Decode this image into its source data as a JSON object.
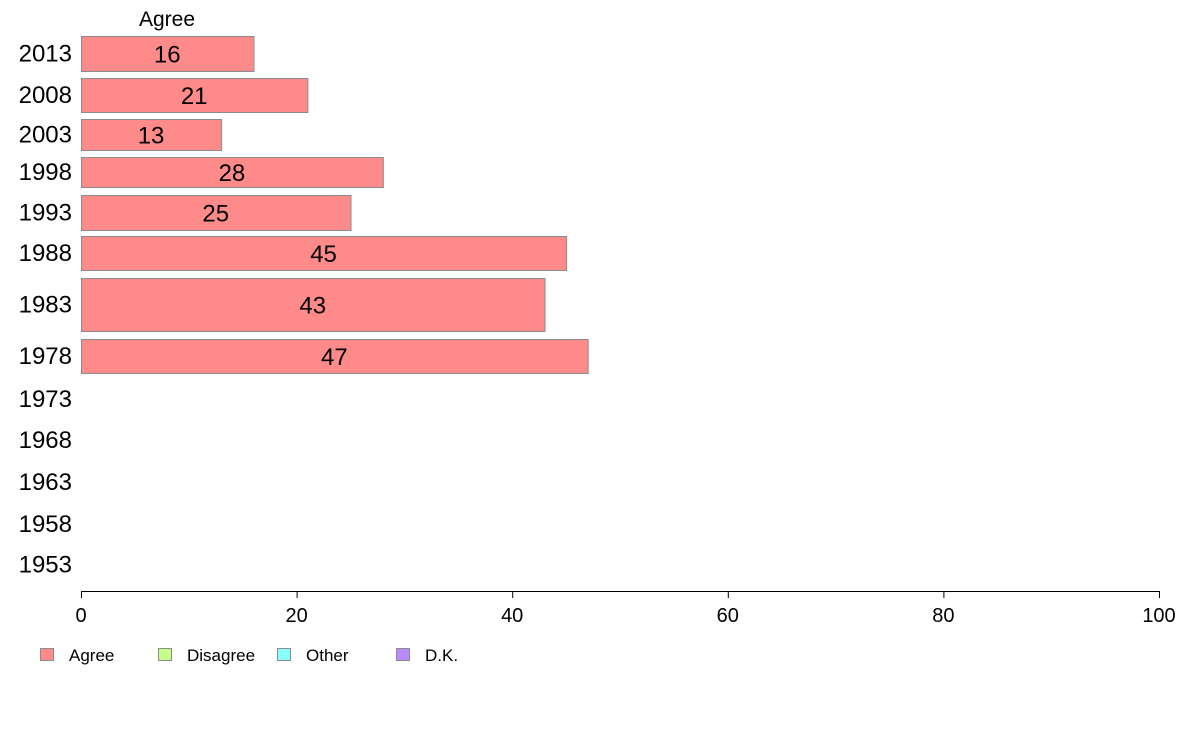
{
  "chart_data": {
    "type": "bar",
    "orientation": "horizontal",
    "stacked": true,
    "column_header": "Agree",
    "categories": [
      "2013",
      "2008",
      "2003",
      "1998",
      "1993",
      "1988",
      "1983",
      "1978",
      "1973",
      "1968",
      "1963",
      "1958",
      "1953"
    ],
    "series": [
      {
        "name": "Agree",
        "color": "#ff8a8a",
        "values": [
          16,
          21,
          13,
          28,
          25,
          45,
          43,
          47,
          null,
          null,
          null,
          null,
          null
        ],
        "labels": [
          "16",
          "21",
          "13",
          "28",
          "25",
          "45",
          "43",
          "47",
          "",
          "",
          "",
          "",
          ""
        ]
      }
    ],
    "xlim": [
      0,
      100
    ],
    "xticks": [
      "0",
      "20",
      "40",
      "60",
      "80",
      "100"
    ],
    "grid": false,
    "legend": {
      "placement": "bottom-left",
      "entries": [
        {
          "label": "Agree",
          "color": "#ff8a8a"
        },
        {
          "label": "Disagree",
          "color": "#c3ff8a"
        },
        {
          "label": "Other",
          "color": "#8affff"
        },
        {
          "label": "D.K.",
          "color": "#b98aff"
        }
      ]
    }
  }
}
